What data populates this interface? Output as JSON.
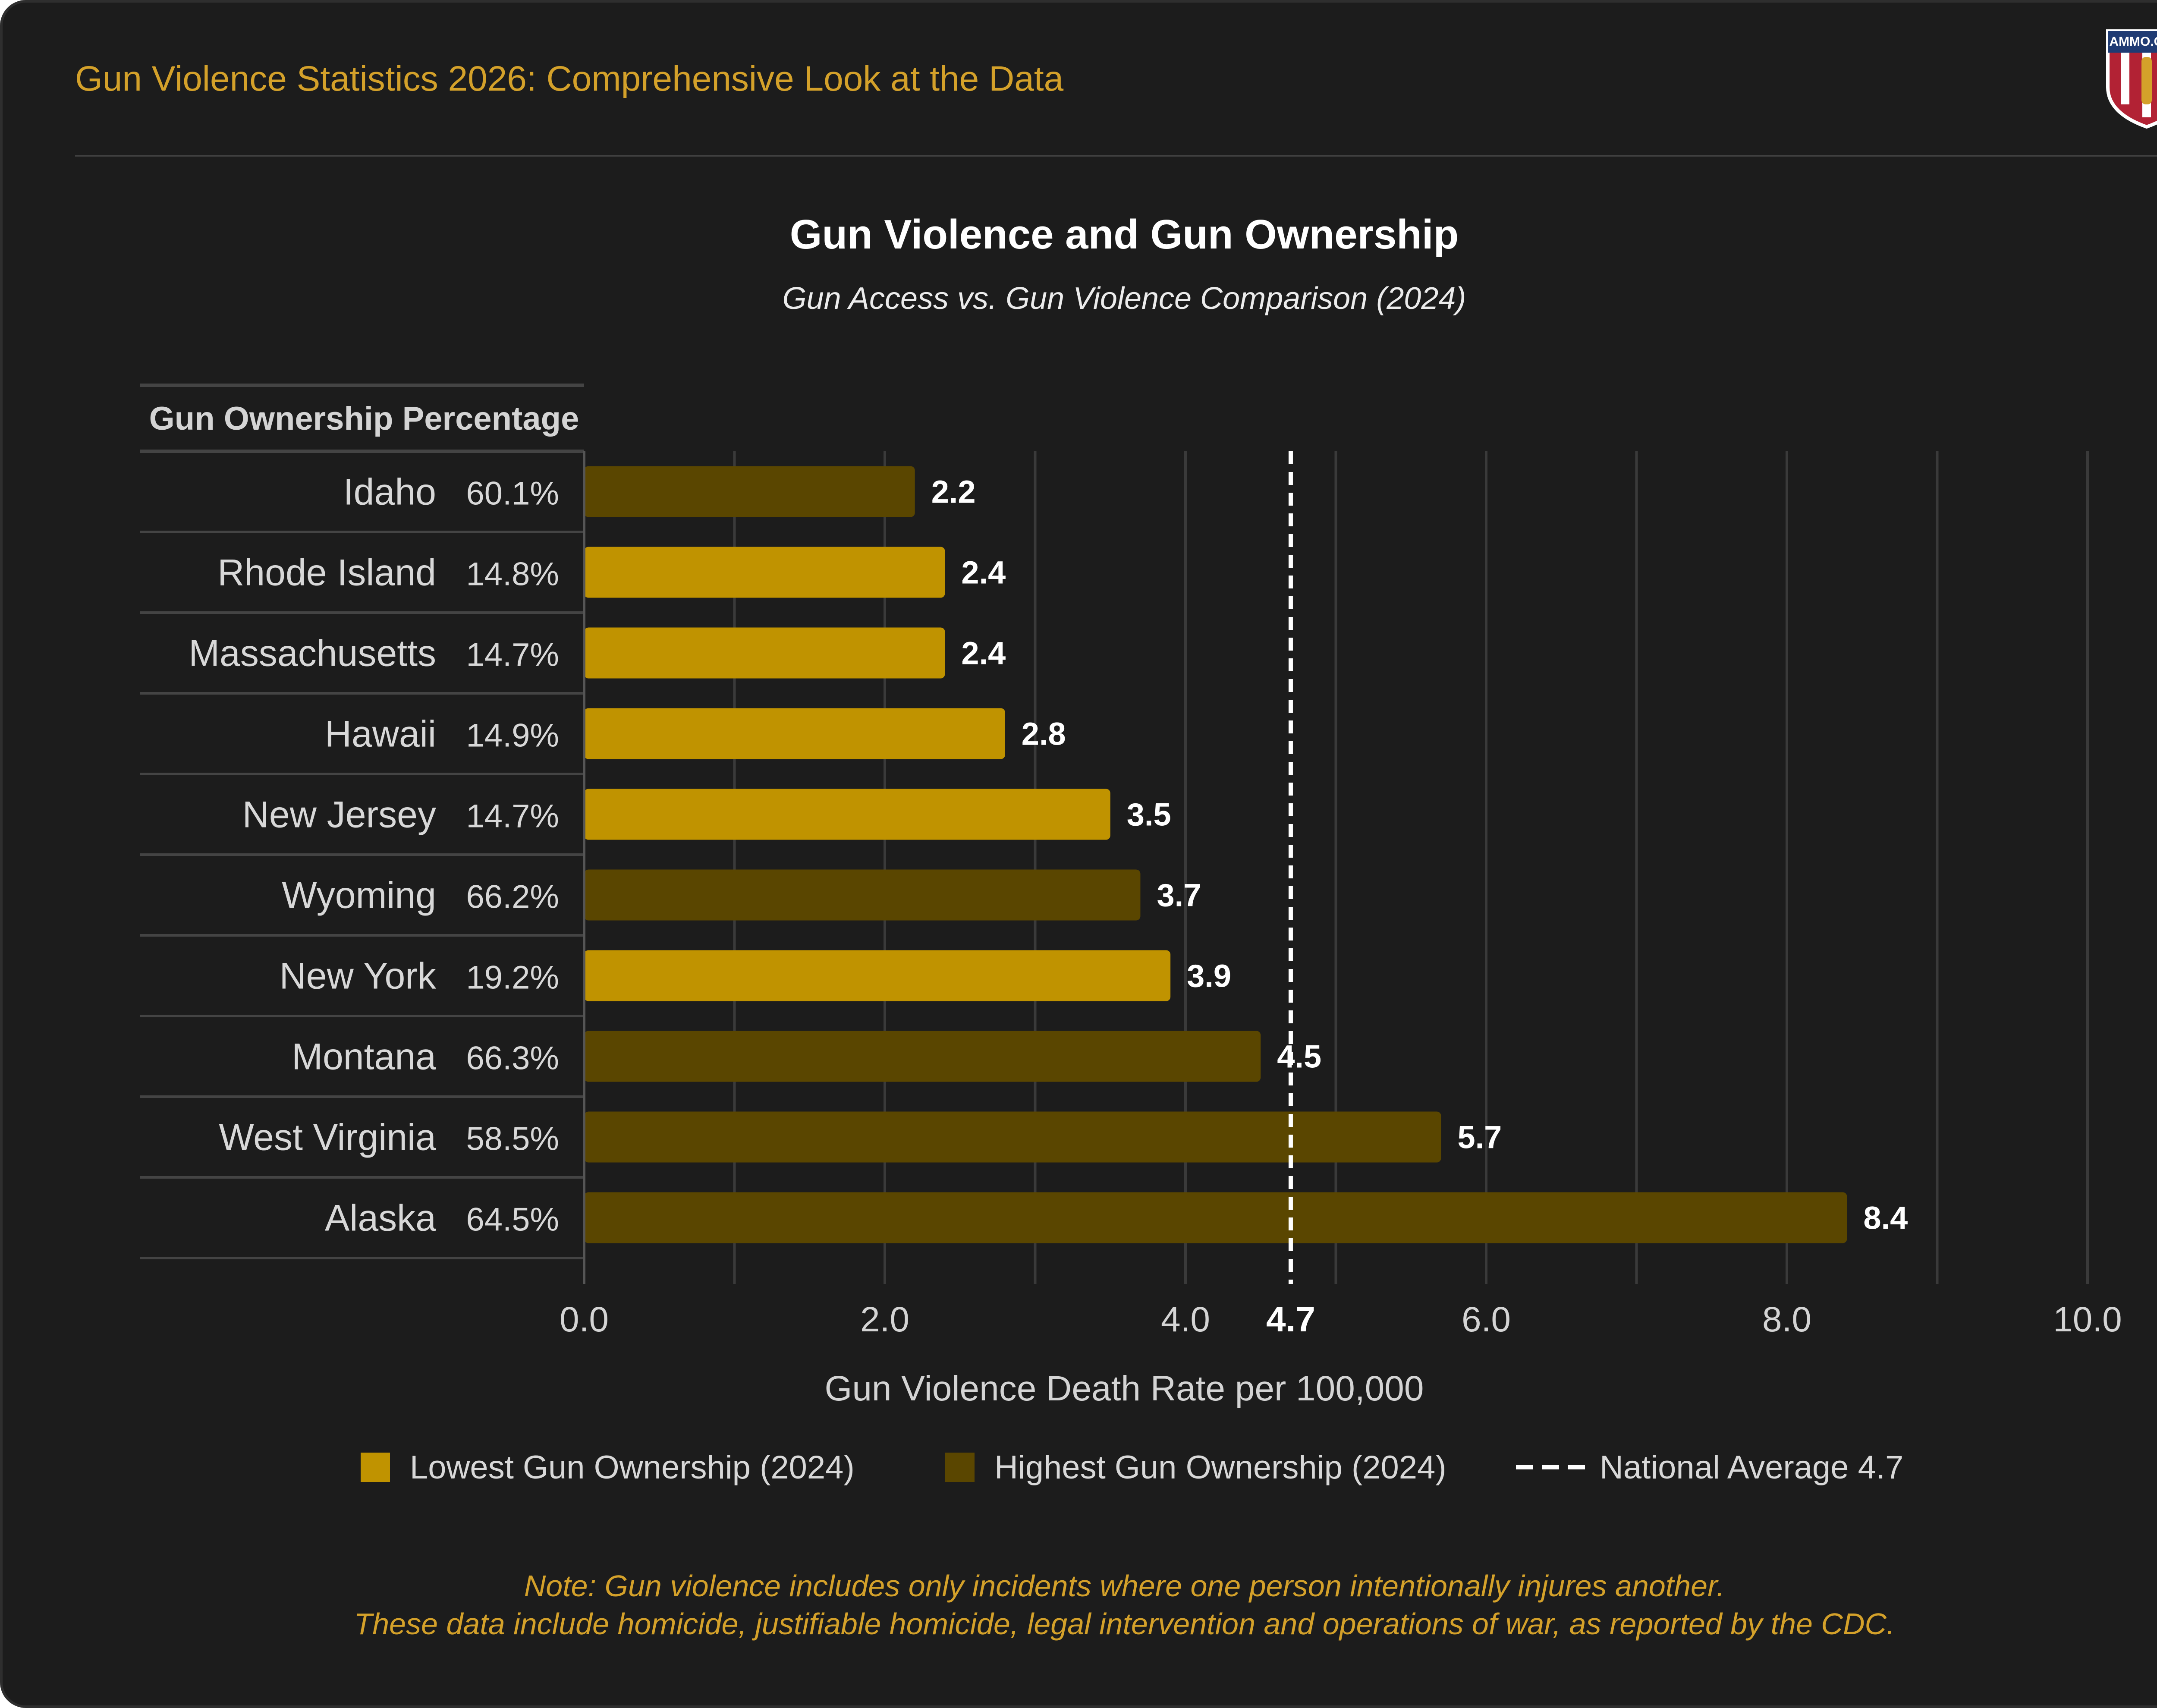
{
  "page": {
    "header_title": "Gun Violence Statistics 2026: Comprehensive Look at the Data",
    "logo_text": "AMMO.COM",
    "note_line1": "Note: Gun violence includes only incidents where one person intentionally injures another.",
    "note_line2": "These data include homicide, justifiable homicide, legal intervention and operations of war, as reported by the CDC."
  },
  "colors": {
    "background": "#1c1c1c",
    "accent_text": "#d4a12a",
    "lowest_ownership_bar": "#c09300",
    "highest_ownership_bar": "#5a4600",
    "average_line": "#ffffff"
  },
  "legend": {
    "lowest": "Lowest Gun Ownership (2024)",
    "highest": "Highest Gun Ownership (2024)",
    "average": "National Average 4.7"
  },
  "chart_data": {
    "type": "bar",
    "orientation": "horizontal",
    "title": "Gun Violence and Gun Ownership",
    "subtitle": "Gun Access vs. Gun Violence Comparison (2024)",
    "table_header": "Gun Ownership Percentage",
    "xlabel": "Gun Violence Death Rate per 100,000",
    "xlim": [
      0,
      10
    ],
    "x_ticks": [
      "0.0",
      "2.0",
      "4.0",
      "6.0",
      "8.0",
      "10.0"
    ],
    "grid": true,
    "legend_position": "bottom",
    "reference_line": {
      "value": 4.7,
      "label": "4.7"
    },
    "categories": [
      "Idaho",
      "Rhode Island",
      "Massachusetts",
      "Hawaii",
      "New Jersey",
      "Wyoming",
      "New York",
      "Montana",
      "West Virginia",
      "Alaska"
    ],
    "ownership": [
      "60.1%",
      "14.8%",
      "14.7%",
      "14.9%",
      "14.7%",
      "66.2%",
      "19.2%",
      "66.3%",
      "58.5%",
      "64.5%"
    ],
    "values": [
      2.2,
      2.4,
      2.4,
      2.8,
      3.5,
      3.7,
      3.9,
      4.5,
      5.7,
      8.4
    ],
    "value_labels": [
      "2.2",
      "2.4",
      "2.4",
      "2.8",
      "3.5",
      "3.7",
      "3.9",
      "4.5",
      "5.7",
      "8.4"
    ],
    "group": [
      "highest",
      "lowest",
      "lowest",
      "lowest",
      "lowest",
      "highest",
      "lowest",
      "highest",
      "highest",
      "highest"
    ]
  }
}
